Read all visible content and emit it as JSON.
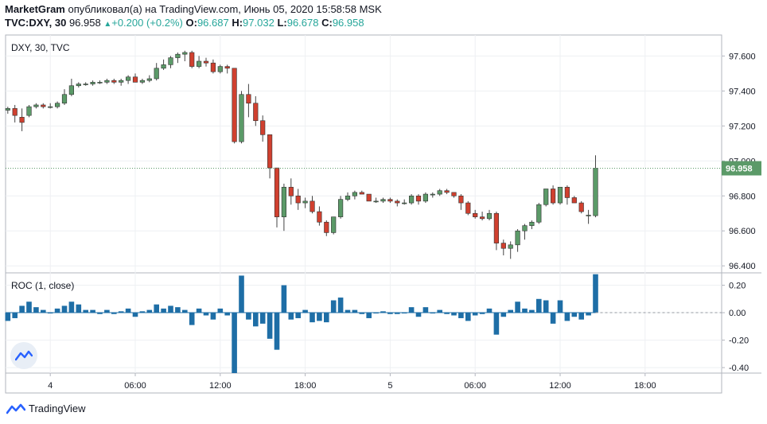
{
  "header": {
    "publisher": "MarketGram",
    "published_text": "опубликовал(а) на TradingView.com, Июнь 05, 2020 15:58:58 MSK",
    "symbol": "TVC:DXY, 30",
    "last": "96.958",
    "change_arrow": "▲",
    "change": "+0.200 (+0.2%)",
    "o_label": "O:",
    "o_value": "96.687",
    "h_label": "H:",
    "h_value": "97.032",
    "l_label": "L:",
    "l_value": "96.678",
    "c_label": "C:",
    "c_value": "96.958"
  },
  "footer": {
    "brand": "TradingView",
    "logo_icon": "tradingview-logo-icon"
  },
  "colors": {
    "up": "#5b9a68",
    "down": "#d0402f",
    "roc": "#1e6ea6",
    "price_label": "#5b9a68"
  },
  "chart_data": [
    {
      "type": "candlestick",
      "title": "DXY, 30, TVC",
      "ylim": [
        96.36,
        97.72
      ],
      "y_ticks": [
        "96.400",
        "96.600",
        "96.800",
        "97.000",
        "97.200",
        "97.400",
        "97.600"
      ],
      "x_ticks": [
        "4",
        "06:00",
        "12:00",
        "18:00",
        "5",
        "06:00",
        "12:00",
        "18:00"
      ],
      "x_tick_index": [
        6,
        18,
        30,
        42,
        54,
        66,
        78,
        90
      ],
      "current_price": 96.958,
      "current_price_label": "96.958",
      "candles": [
        {
          "o": 97.29,
          "h": 97.31,
          "l": 97.27,
          "c": 97.3
        },
        {
          "o": 97.3,
          "h": 97.32,
          "l": 97.22,
          "c": 97.26
        },
        {
          "o": 97.25,
          "h": 97.3,
          "l": 97.17,
          "c": 97.22
        },
        {
          "o": 97.26,
          "h": 97.32,
          "l": 97.25,
          "c": 97.31
        },
        {
          "o": 97.31,
          "h": 97.33,
          "l": 97.3,
          "c": 97.32
        },
        {
          "o": 97.32,
          "h": 97.33,
          "l": 97.3,
          "c": 97.31
        },
        {
          "o": 97.31,
          "h": 97.33,
          "l": 97.3,
          "c": 97.31
        },
        {
          "o": 97.31,
          "h": 97.34,
          "l": 97.3,
          "c": 97.33
        },
        {
          "o": 97.33,
          "h": 97.41,
          "l": 97.32,
          "c": 97.38
        },
        {
          "o": 97.38,
          "h": 97.47,
          "l": 97.37,
          "c": 97.43
        },
        {
          "o": 97.43,
          "h": 97.45,
          "l": 97.42,
          "c": 97.44
        },
        {
          "o": 97.44,
          "h": 97.45,
          "l": 97.43,
          "c": 97.44
        },
        {
          "o": 97.44,
          "h": 97.46,
          "l": 97.43,
          "c": 97.45
        },
        {
          "o": 97.45,
          "h": 97.46,
          "l": 97.44,
          "c": 97.45
        },
        {
          "o": 97.45,
          "h": 97.47,
          "l": 97.44,
          "c": 97.46
        },
        {
          "o": 97.46,
          "h": 97.47,
          "l": 97.44,
          "c": 97.45
        },
        {
          "o": 97.45,
          "h": 97.47,
          "l": 97.43,
          "c": 97.46
        },
        {
          "o": 97.46,
          "h": 97.49,
          "l": 97.44,
          "c": 97.48
        },
        {
          "o": 97.48,
          "h": 97.5,
          "l": 97.45,
          "c": 97.45
        },
        {
          "o": 97.45,
          "h": 97.47,
          "l": 97.44,
          "c": 97.46
        },
        {
          "o": 97.46,
          "h": 97.49,
          "l": 97.45,
          "c": 97.47
        },
        {
          "o": 97.47,
          "h": 97.56,
          "l": 97.46,
          "c": 97.53
        },
        {
          "o": 97.53,
          "h": 97.58,
          "l": 97.52,
          "c": 97.55
        },
        {
          "o": 97.55,
          "h": 97.6,
          "l": 97.53,
          "c": 97.59
        },
        {
          "o": 97.59,
          "h": 97.62,
          "l": 97.56,
          "c": 97.61
        },
        {
          "o": 97.61,
          "h": 97.63,
          "l": 97.57,
          "c": 97.62
        },
        {
          "o": 97.62,
          "h": 97.63,
          "l": 97.53,
          "c": 97.54
        },
        {
          "o": 97.54,
          "h": 97.6,
          "l": 97.53,
          "c": 97.57
        },
        {
          "o": 97.57,
          "h": 97.59,
          "l": 97.54,
          "c": 97.56
        },
        {
          "o": 97.56,
          "h": 97.58,
          "l": 97.5,
          "c": 97.51
        },
        {
          "o": 97.51,
          "h": 97.55,
          "l": 97.5,
          "c": 97.54
        },
        {
          "o": 97.54,
          "h": 97.55,
          "l": 97.5,
          "c": 97.53
        },
        {
          "o": 97.53,
          "h": 97.53,
          "l": 97.1,
          "c": 97.11
        },
        {
          "o": 97.11,
          "h": 97.4,
          "l": 97.1,
          "c": 97.38
        },
        {
          "o": 97.38,
          "h": 97.44,
          "l": 97.25,
          "c": 97.33
        },
        {
          "o": 97.33,
          "h": 97.37,
          "l": 97.2,
          "c": 97.23
        },
        {
          "o": 97.23,
          "h": 97.26,
          "l": 97.11,
          "c": 97.15
        },
        {
          "o": 97.15,
          "h": 97.15,
          "l": 96.9,
          "c": 96.96
        },
        {
          "o": 96.96,
          "h": 96.96,
          "l": 96.62,
          "c": 96.68
        },
        {
          "o": 96.68,
          "h": 96.87,
          "l": 96.6,
          "c": 96.85
        },
        {
          "o": 96.85,
          "h": 96.9,
          "l": 96.75,
          "c": 96.8
        },
        {
          "o": 96.8,
          "h": 96.84,
          "l": 96.72,
          "c": 96.76
        },
        {
          "o": 96.76,
          "h": 96.79,
          "l": 96.73,
          "c": 96.77
        },
        {
          "o": 96.77,
          "h": 96.8,
          "l": 96.7,
          "c": 96.71
        },
        {
          "o": 96.71,
          "h": 96.74,
          "l": 96.63,
          "c": 96.65
        },
        {
          "o": 96.65,
          "h": 96.66,
          "l": 96.57,
          "c": 96.59
        },
        {
          "o": 96.59,
          "h": 96.68,
          "l": 96.58,
          "c": 96.68
        },
        {
          "o": 96.68,
          "h": 96.8,
          "l": 96.67,
          "c": 96.78
        },
        {
          "o": 96.78,
          "h": 96.82,
          "l": 96.77,
          "c": 96.8
        },
        {
          "o": 96.8,
          "h": 96.83,
          "l": 96.78,
          "c": 96.82
        },
        {
          "o": 96.82,
          "h": 96.83,
          "l": 96.81,
          "c": 96.81
        },
        {
          "o": 96.81,
          "h": 96.81,
          "l": 96.77,
          "c": 96.77
        },
        {
          "o": 96.77,
          "h": 96.79,
          "l": 96.76,
          "c": 96.77
        },
        {
          "o": 96.77,
          "h": 96.79,
          "l": 96.76,
          "c": 96.78
        },
        {
          "o": 96.78,
          "h": 96.79,
          "l": 96.76,
          "c": 96.77
        },
        {
          "o": 96.77,
          "h": 96.78,
          "l": 96.74,
          "c": 96.76
        },
        {
          "o": 96.76,
          "h": 96.78,
          "l": 96.75,
          "c": 96.76
        },
        {
          "o": 96.76,
          "h": 96.81,
          "l": 96.75,
          "c": 96.8
        },
        {
          "o": 96.8,
          "h": 96.81,
          "l": 96.75,
          "c": 96.77
        },
        {
          "o": 96.77,
          "h": 96.82,
          "l": 96.76,
          "c": 96.81
        },
        {
          "o": 96.81,
          "h": 96.82,
          "l": 96.79,
          "c": 96.81
        },
        {
          "o": 96.81,
          "h": 96.84,
          "l": 96.8,
          "c": 96.83
        },
        {
          "o": 96.83,
          "h": 96.84,
          "l": 96.81,
          "c": 96.82
        },
        {
          "o": 96.82,
          "h": 96.82,
          "l": 96.79,
          "c": 96.8
        },
        {
          "o": 96.8,
          "h": 96.81,
          "l": 96.72,
          "c": 96.76
        },
        {
          "o": 96.76,
          "h": 96.77,
          "l": 96.69,
          "c": 96.7
        },
        {
          "o": 96.7,
          "h": 96.72,
          "l": 96.67,
          "c": 96.68
        },
        {
          "o": 96.68,
          "h": 96.71,
          "l": 96.66,
          "c": 96.67
        },
        {
          "o": 96.67,
          "h": 96.72,
          "l": 96.66,
          "c": 96.7
        },
        {
          "o": 96.7,
          "h": 96.71,
          "l": 96.49,
          "c": 96.53
        },
        {
          "o": 96.53,
          "h": 96.55,
          "l": 96.46,
          "c": 96.5
        },
        {
          "o": 96.5,
          "h": 96.54,
          "l": 96.44,
          "c": 96.52
        },
        {
          "o": 96.52,
          "h": 96.61,
          "l": 96.48,
          "c": 96.6
        },
        {
          "o": 96.6,
          "h": 96.64,
          "l": 96.55,
          "c": 96.63
        },
        {
          "o": 96.63,
          "h": 96.66,
          "l": 96.61,
          "c": 96.65
        },
        {
          "o": 96.65,
          "h": 96.76,
          "l": 96.64,
          "c": 96.75
        },
        {
          "o": 96.75,
          "h": 96.84,
          "l": 96.74,
          "c": 96.84
        },
        {
          "o": 96.84,
          "h": 96.86,
          "l": 96.75,
          "c": 96.76
        },
        {
          "o": 96.76,
          "h": 96.85,
          "l": 96.75,
          "c": 96.85
        },
        {
          "o": 96.85,
          "h": 96.86,
          "l": 96.75,
          "c": 96.79
        },
        {
          "o": 96.79,
          "h": 96.8,
          "l": 96.76,
          "c": 96.76
        },
        {
          "o": 96.76,
          "h": 96.77,
          "l": 96.7,
          "c": 96.71
        },
        {
          "o": 96.69,
          "h": 96.72,
          "l": 96.64,
          "c": 96.69
        },
        {
          "o": 96.687,
          "h": 97.032,
          "l": 96.678,
          "c": 96.958
        }
      ]
    },
    {
      "type": "bar",
      "title": "ROC (1, close)",
      "ylim": [
        -0.44,
        0.29
      ],
      "y_ticks": [
        "-0.40",
        "-0.20",
        "0.00",
        "0.20"
      ],
      "values": [
        -0.06,
        -0.04,
        0.05,
        0.08,
        0.04,
        0.02,
        0.0,
        0.03,
        0.05,
        0.08,
        0.06,
        0.02,
        0.02,
        -0.01,
        0.02,
        -0.01,
        0.01,
        0.03,
        -0.03,
        0.01,
        0.02,
        0.06,
        0.03,
        0.05,
        0.04,
        0.02,
        -0.09,
        0.03,
        -0.02,
        -0.05,
        0.03,
        -0.02,
        -0.44,
        0.27,
        -0.05,
        -0.1,
        -0.08,
        -0.19,
        -0.27,
        0.2,
        -0.05,
        -0.04,
        0.02,
        -0.07,
        -0.06,
        -0.07,
        0.09,
        0.11,
        0.02,
        0.02,
        -0.01,
        -0.04,
        0.0,
        0.01,
        -0.01,
        -0.01,
        0.0,
        0.04,
        -0.03,
        0.04,
        0.0,
        0.02,
        -0.01,
        -0.02,
        -0.04,
        -0.06,
        -0.02,
        -0.01,
        0.03,
        -0.16,
        -0.03,
        0.02,
        0.08,
        0.03,
        0.02,
        0.1,
        0.09,
        -0.08,
        0.09,
        -0.06,
        -0.03,
        -0.05,
        -0.02,
        0.28
      ]
    }
  ]
}
